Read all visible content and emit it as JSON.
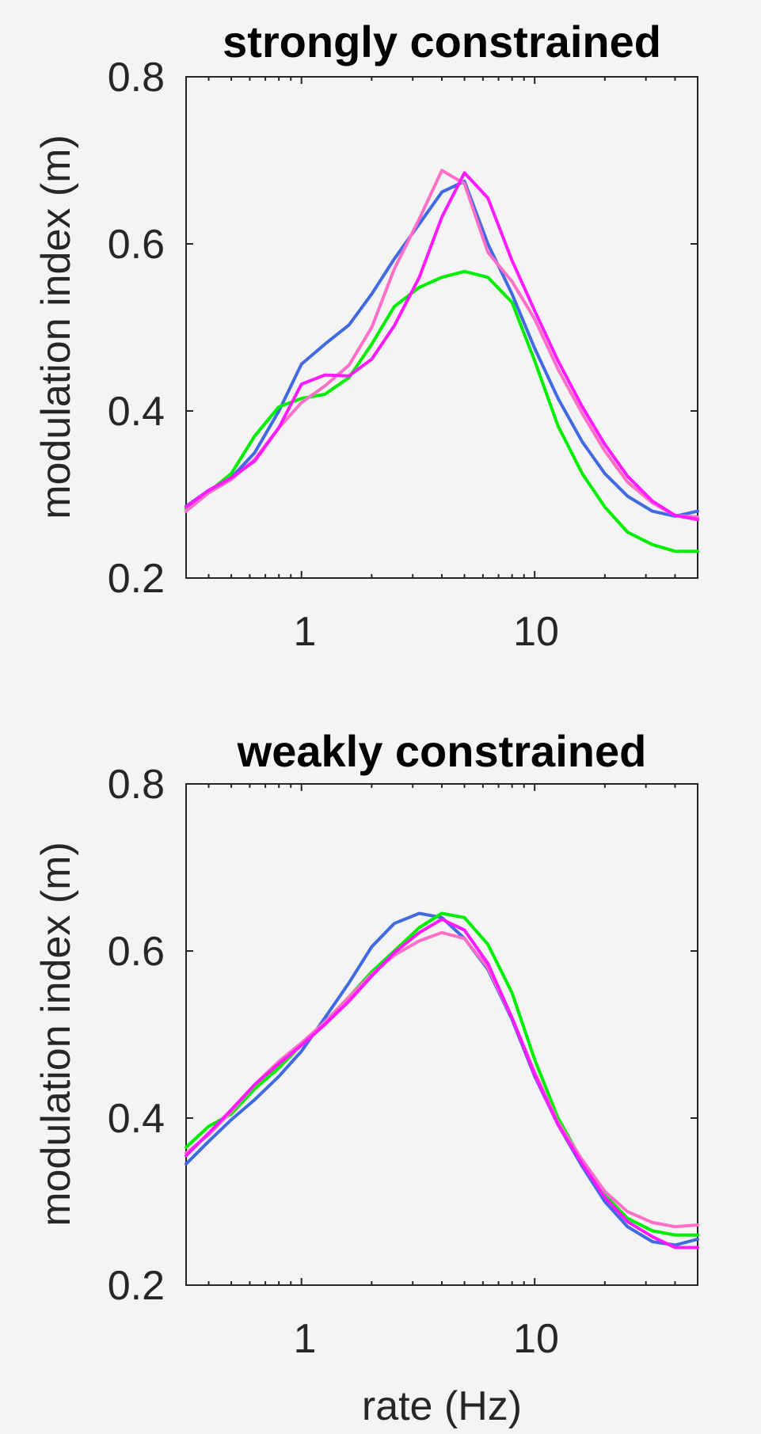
{
  "chart_data": [
    {
      "type": "line",
      "title": "strongly constrained",
      "xlabel": "",
      "ylabel": "modulation index (m)",
      "xscale": "log",
      "xlim": [
        0.32,
        50
      ],
      "ylim": [
        0.2,
        0.8
      ],
      "xticks": [
        1,
        10
      ],
      "xtick_labels": [
        "1",
        "10"
      ],
      "yticks": [
        0.2,
        0.4,
        0.6,
        0.8
      ],
      "ytick_labels": [
        "0.2",
        "0.4",
        "0.6",
        "0.8"
      ],
      "grid": false,
      "series": [
        {
          "color": "#4169e1",
          "x": [
            0.32,
            0.4,
            0.5,
            0.63,
            0.8,
            1.0,
            1.26,
            1.6,
            2.0,
            2.5,
            3.2,
            4.0,
            5.0,
            6.3,
            8.0,
            10,
            12.6,
            16,
            20,
            25,
            32,
            40,
            50
          ],
          "y": [
            0.286,
            0.305,
            0.32,
            0.35,
            0.4,
            0.456,
            0.48,
            0.503,
            0.54,
            0.582,
            0.624,
            0.662,
            0.675,
            0.6,
            0.54,
            0.475,
            0.415,
            0.363,
            0.325,
            0.298,
            0.28,
            0.274,
            0.28
          ]
        },
        {
          "color": "#00ee00",
          "x": [
            0.32,
            0.4,
            0.5,
            0.63,
            0.8,
            1.0,
            1.26,
            1.6,
            2.0,
            2.5,
            3.2,
            4.0,
            5.0,
            6.3,
            8.0,
            10,
            12.6,
            16,
            20,
            25,
            32,
            40,
            50
          ],
          "y": [
            0.283,
            0.303,
            0.325,
            0.37,
            0.405,
            0.415,
            0.42,
            0.44,
            0.48,
            0.525,
            0.548,
            0.56,
            0.567,
            0.56,
            0.53,
            0.46,
            0.382,
            0.325,
            0.285,
            0.255,
            0.24,
            0.232,
            0.232
          ]
        },
        {
          "color": "#ff6ec7",
          "x": [
            0.32,
            0.4,
            0.5,
            0.63,
            0.8,
            1.0,
            1.26,
            1.6,
            2.0,
            2.5,
            3.2,
            4.0,
            5.0,
            6.3,
            8.0,
            10,
            12.6,
            16,
            20,
            25,
            32,
            40,
            50
          ],
          "y": [
            0.28,
            0.302,
            0.318,
            0.342,
            0.38,
            0.41,
            0.43,
            0.455,
            0.5,
            0.57,
            0.63,
            0.688,
            0.672,
            0.59,
            0.555,
            0.51,
            0.45,
            0.397,
            0.352,
            0.315,
            0.29,
            0.275,
            0.273
          ]
        },
        {
          "color": "#ff1aff",
          "x": [
            0.32,
            0.4,
            0.5,
            0.63,
            0.8,
            1.0,
            1.26,
            1.6,
            2.0,
            2.5,
            3.2,
            4.0,
            5.0,
            6.3,
            8.0,
            10,
            12.6,
            16,
            20,
            25,
            32,
            40,
            50
          ],
          "y": [
            0.285,
            0.305,
            0.32,
            0.34,
            0.38,
            0.432,
            0.443,
            0.442,
            0.462,
            0.502,
            0.56,
            0.632,
            0.685,
            0.655,
            0.58,
            0.52,
            0.46,
            0.405,
            0.36,
            0.322,
            0.292,
            0.275,
            0.27
          ]
        }
      ]
    },
    {
      "type": "line",
      "title": "weakly constrained",
      "xlabel": "rate (Hz)",
      "ylabel": "modulation index (m)",
      "xscale": "log",
      "xlim": [
        0.32,
        50
      ],
      "ylim": [
        0.2,
        0.8
      ],
      "xticks": [
        1,
        10
      ],
      "xtick_labels": [
        "1",
        "10"
      ],
      "yticks": [
        0.2,
        0.4,
        0.6,
        0.8
      ],
      "ytick_labels": [
        "0.2",
        "0.4",
        "0.6",
        "0.8"
      ],
      "grid": false,
      "series": [
        {
          "color": "#4169e1",
          "x": [
            0.32,
            0.4,
            0.5,
            0.63,
            0.8,
            1.0,
            1.26,
            1.6,
            2.0,
            2.5,
            3.2,
            4.0,
            5.0,
            6.3,
            8.0,
            10,
            12.6,
            16,
            20,
            25,
            32,
            40,
            50
          ],
          "y": [
            0.345,
            0.372,
            0.398,
            0.422,
            0.45,
            0.48,
            0.52,
            0.562,
            0.605,
            0.633,
            0.645,
            0.64,
            0.615,
            0.578,
            0.518,
            0.45,
            0.392,
            0.342,
            0.3,
            0.27,
            0.252,
            0.248,
            0.255
          ]
        },
        {
          "color": "#00ee00",
          "x": [
            0.32,
            0.4,
            0.5,
            0.63,
            0.8,
            1.0,
            1.26,
            1.6,
            2.0,
            2.5,
            3.2,
            4.0,
            5.0,
            6.3,
            8.0,
            10,
            12.6,
            16,
            20,
            25,
            32,
            40,
            50
          ],
          "y": [
            0.365,
            0.39,
            0.405,
            0.435,
            0.46,
            0.488,
            0.515,
            0.545,
            0.575,
            0.6,
            0.628,
            0.645,
            0.64,
            0.608,
            0.55,
            0.47,
            0.4,
            0.348,
            0.308,
            0.28,
            0.265,
            0.26,
            0.26
          ]
        },
        {
          "color": "#ff6ec7",
          "x": [
            0.32,
            0.4,
            0.5,
            0.63,
            0.8,
            1.0,
            1.26,
            1.6,
            2.0,
            2.5,
            3.2,
            4.0,
            5.0,
            6.3,
            8.0,
            10,
            12.6,
            16,
            20,
            25,
            32,
            40,
            50
          ],
          "y": [
            0.358,
            0.38,
            0.408,
            0.44,
            0.468,
            0.49,
            0.515,
            0.545,
            0.572,
            0.595,
            0.612,
            0.622,
            0.615,
            0.58,
            0.52,
            0.455,
            0.395,
            0.35,
            0.312,
            0.288,
            0.275,
            0.27,
            0.272
          ]
        },
        {
          "color": "#ff1aff",
          "x": [
            0.32,
            0.4,
            0.5,
            0.63,
            0.8,
            1.0,
            1.26,
            1.6,
            2.0,
            2.5,
            3.2,
            4.0,
            5.0,
            6.3,
            8.0,
            10,
            12.6,
            16,
            20,
            25,
            32,
            40,
            50
          ],
          "y": [
            0.355,
            0.382,
            0.41,
            0.44,
            0.465,
            0.487,
            0.512,
            0.54,
            0.57,
            0.598,
            0.622,
            0.638,
            0.625,
            0.585,
            0.52,
            0.452,
            0.392,
            0.345,
            0.305,
            0.276,
            0.258,
            0.245,
            0.245
          ]
        }
      ]
    }
  ]
}
